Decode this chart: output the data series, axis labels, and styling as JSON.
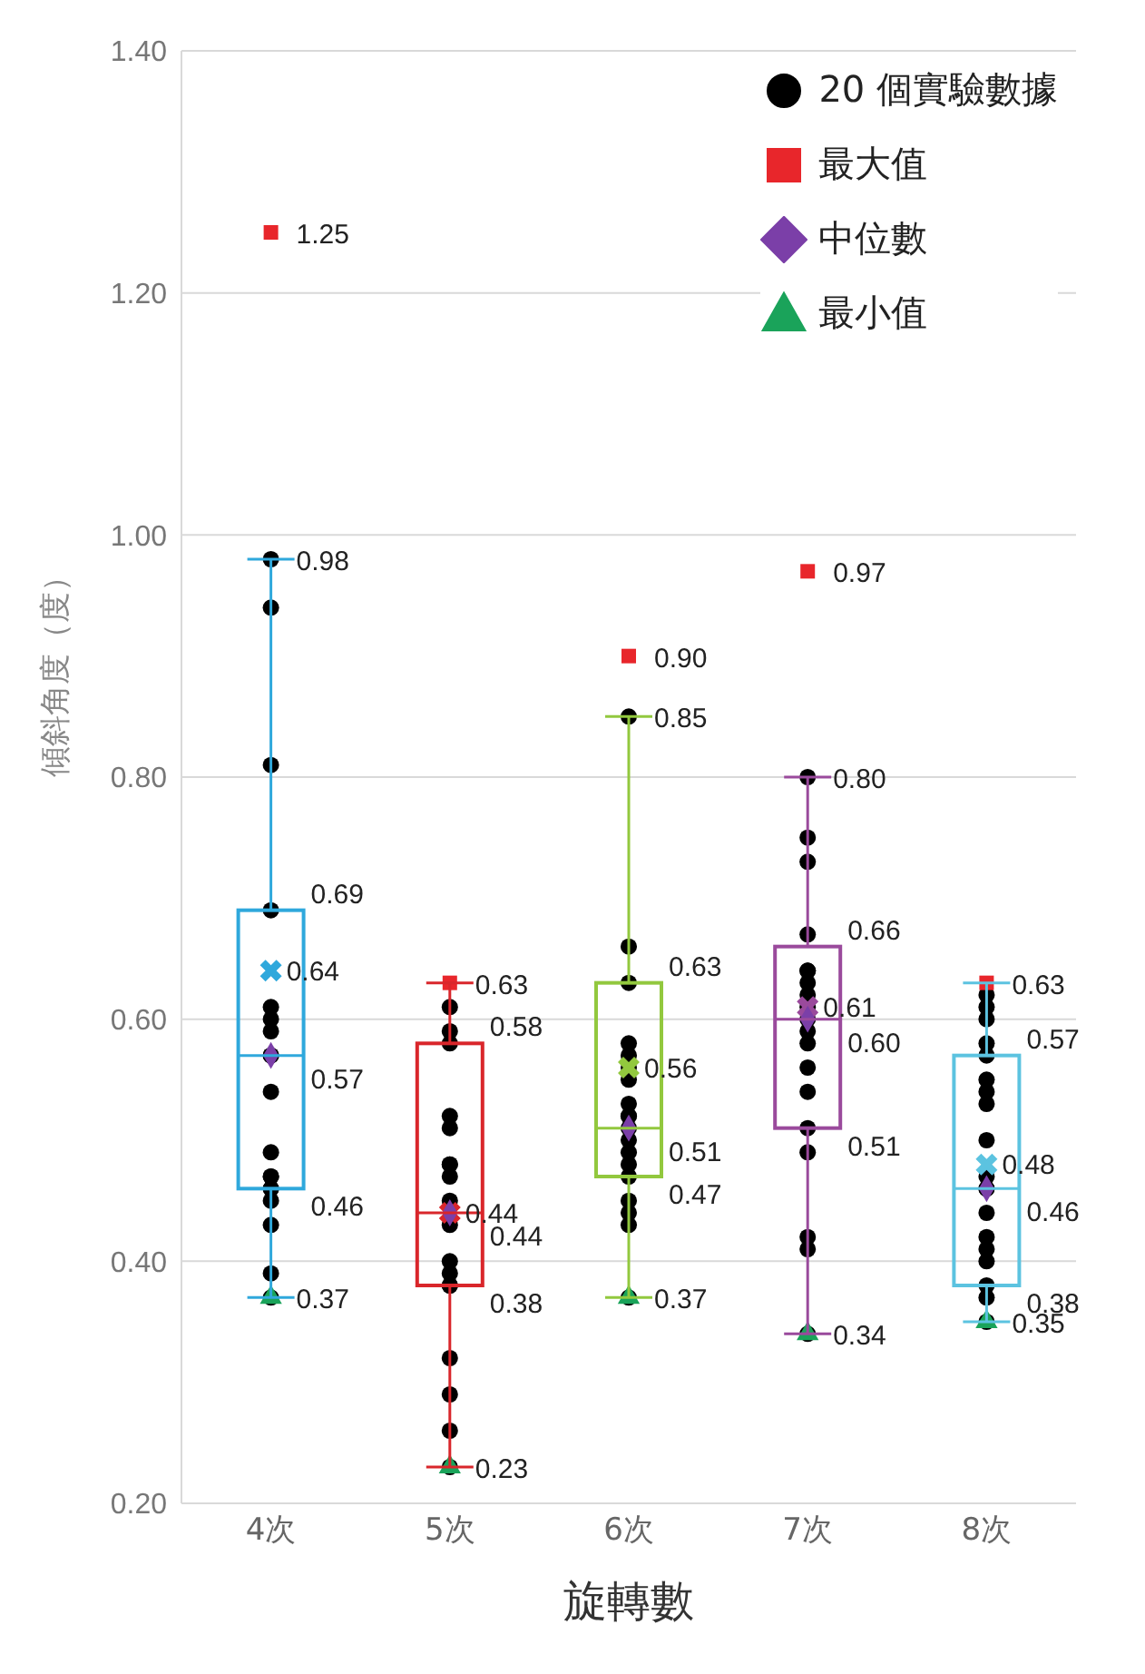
{
  "chart_data": {
    "type": "box",
    "xlabel": "旋轉數",
    "ylabel": "傾斜角度（度）",
    "categories": [
      "4次",
      "5次",
      "6次",
      "7次",
      "8次"
    ],
    "colors": [
      "#2fa8dc",
      "#d9262b",
      "#92c83e",
      "#9a4a9c",
      "#5cc3e0"
    ],
    "boxes": [
      {
        "low": 0.37,
        "q1": 0.46,
        "median": 0.57,
        "q3": 0.69,
        "high": 0.98
      },
      {
        "low": 0.23,
        "q1": 0.38,
        "median": 0.44,
        "q3": 0.58,
        "high": 0.63
      },
      {
        "low": 0.37,
        "q1": 0.47,
        "median": 0.51,
        "q3": 0.63,
        "high": 0.85
      },
      {
        "low": 0.34,
        "q1": 0.51,
        "median": 0.6,
        "q3": 0.66,
        "high": 0.8
      },
      {
        "low": 0.35,
        "q1": 0.38,
        "median": 0.46,
        "q3": 0.57,
        "high": 0.63
      }
    ],
    "series": [
      {
        "type": "scatter",
        "name": "20 個實驗數據",
        "color": "#000000",
        "marker": "circle",
        "x": [
          "4次",
          "4次",
          "4次",
          "4次",
          "4次",
          "4次",
          "4次",
          "4次",
          "4次",
          "4次",
          "4次",
          "4次",
          "4次",
          "4次",
          "4次",
          "4次",
          "4次",
          "4次",
          "4次",
          "4次",
          "5次",
          "5次",
          "5次",
          "5次",
          "5次",
          "5次",
          "5次",
          "5次",
          "5次",
          "5次",
          "5次",
          "5次",
          "5次",
          "5次",
          "5次",
          "5次",
          "5次",
          "5次",
          "5次",
          "5次",
          "6次",
          "6次",
          "6次",
          "6次",
          "6次",
          "6次",
          "6次",
          "6次",
          "6次",
          "6次",
          "6次",
          "6次",
          "6次",
          "6次",
          "6次",
          "6次",
          "6次",
          "6次",
          "6次",
          "6次",
          "7次",
          "7次",
          "7次",
          "7次",
          "7次",
          "7次",
          "7次",
          "7次",
          "7次",
          "7次",
          "7次",
          "7次",
          "7次",
          "7次",
          "7次",
          "7次",
          "7次",
          "7次",
          "7次",
          "7次",
          "8次",
          "8次",
          "8次",
          "8次",
          "8次",
          "8次",
          "8次",
          "8次",
          "8次",
          "8次",
          "8次",
          "8次",
          "8次",
          "8次",
          "8次",
          "8次",
          "8次",
          "8次",
          "8次",
          "8次"
        ],
        "values": [
          null,
          0.98,
          0.94,
          0.81,
          0.69,
          0.61,
          0.6,
          0.59,
          0.57,
          0.57,
          0.54,
          0.49,
          0.47,
          0.47,
          0.46,
          0.46,
          0.45,
          0.43,
          0.39,
          0.37,
          null,
          0.61,
          0.59,
          0.58,
          0.52,
          0.51,
          0.48,
          0.48,
          0.47,
          0.45,
          null,
          0.43,
          0.4,
          0.39,
          0.38,
          0.38,
          0.32,
          0.29,
          0.26,
          0.23,
          null,
          0.85,
          0.66,
          0.63,
          0.58,
          0.57,
          0.56,
          0.55,
          0.53,
          0.52,
          0.52,
          0.51,
          0.5,
          0.49,
          0.48,
          0.47,
          0.45,
          0.44,
          0.43,
          0.37,
          null,
          0.8,
          0.75,
          0.73,
          0.67,
          0.64,
          0.64,
          0.63,
          0.62,
          0.61,
          0.6,
          0.59,
          0.58,
          0.56,
          0.54,
          0.51,
          0.49,
          0.42,
          0.41,
          0.34,
          null,
          0.62,
          0.61,
          0.6,
          0.58,
          0.57,
          0.55,
          0.54,
          0.53,
          0.5,
          0.47,
          0.46,
          0.46,
          0.44,
          0.42,
          0.41,
          0.4,
          0.38,
          0.37,
          0.35
        ]
      },
      {
        "type": "scatter",
        "colors": [
          "#2fa8dc",
          "#d9262b",
          "#92c83e",
          "#9a4a9c",
          "#5cc3e0"
        ],
        "marker": "cross",
        "x": [
          "4次",
          "5次",
          "6次",
          "7次",
          "8次"
        ],
        "values": [
          0.64,
          0.44,
          0.56,
          0.61,
          0.48
        ],
        "value_labels": [
          "0.64",
          "0.44",
          "0.56",
          "0.61",
          "0.48"
        ]
      },
      {
        "type": "scatter",
        "name": "最大值",
        "color": "#e8262b",
        "marker": "square",
        "x": [
          "4次",
          "5次",
          "6次",
          "7次",
          "8次"
        ],
        "values": [
          1.25,
          0.63,
          0.9,
          0.97,
          0.63
        ]
      },
      {
        "type": "scatter",
        "name": "中位數",
        "color": "#7b3fa8",
        "marker": "diamond",
        "x": [
          "4次",
          "5次",
          "6次",
          "7次",
          "8次"
        ],
        "values": [
          0.57,
          0.44,
          0.51,
          0.6,
          0.46
        ]
      },
      {
        "type": "scatter",
        "name": "最小值",
        "color": "#1aa35a",
        "marker": "triangle",
        "x": [
          "4次",
          "5次",
          "6次",
          "7次",
          "8次"
        ],
        "values": [
          0.37,
          0.23,
          0.37,
          0.34,
          0.35
        ]
      }
    ],
    "annotations": [
      {
        "text": "1.25",
        "x": "4次",
        "y": 1.25
      },
      {
        "text": "0.98",
        "x": "4次",
        "y": 0.98
      },
      {
        "text": "0.69",
        "x": "4次",
        "y": 0.69
      },
      {
        "text": "0.57",
        "x": "4次",
        "y": 0.57
      },
      {
        "text": "0.46",
        "x": "4次",
        "y": 0.46
      },
      {
        "text": "0.37",
        "x": "4次",
        "y": 0.37
      },
      {
        "text": "0.63",
        "x": "5次",
        "y": 0.63
      },
      {
        "text": "0.58",
        "x": "5次",
        "y": 0.58
      },
      {
        "text": "0.44",
        "x": "5次",
        "y": 0.44
      },
      {
        "text": "0.38",
        "x": "5次",
        "y": 0.38
      },
      {
        "text": "0.23",
        "x": "5次",
        "y": 0.23
      },
      {
        "text": "0.90",
        "x": "6次",
        "y": 0.9
      },
      {
        "text": "0.85",
        "x": "6次",
        "y": 0.85
      },
      {
        "text": "0.63",
        "x": "6次",
        "y": 0.63
      },
      {
        "text": "0.51",
        "x": "6次",
        "y": 0.51
      },
      {
        "text": "0.47",
        "x": "6次",
        "y": 0.47
      },
      {
        "text": "0.37",
        "x": "6次",
        "y": 0.37
      },
      {
        "text": "0.97",
        "x": "7次",
        "y": 0.97
      },
      {
        "text": "0.80",
        "x": "7次",
        "y": 0.8
      },
      {
        "text": "0.66",
        "x": "7次",
        "y": 0.66
      },
      {
        "text": "0.60",
        "x": "7次",
        "y": 0.6
      },
      {
        "text": "0.51",
        "x": "7次",
        "y": 0.51
      },
      {
        "text": "0.34",
        "x": "7次",
        "y": 0.34
      },
      {
        "text": "0.63",
        "x": "8次",
        "y": 0.63
      },
      {
        "text": "0.57",
        "x": "8次",
        "y": 0.57
      },
      {
        "text": "0.46",
        "x": "8次",
        "y": 0.46
      },
      {
        "text": "0.38",
        "x": "8次",
        "y": 0.38
      },
      {
        "text": "0.35",
        "x": "8次",
        "y": 0.35
      }
    ],
    "ylim": [
      0.2,
      1.4
    ],
    "yticks": [
      {
        "value": 0.2,
        "label": "0.20"
      },
      {
        "value": 0.4,
        "label": "0.40"
      },
      {
        "value": 0.6,
        "label": "0.60"
      },
      {
        "value": 0.8,
        "label": "0.80"
      },
      {
        "value": 1.0,
        "label": "1.00"
      },
      {
        "value": 1.2,
        "label": "1.20"
      },
      {
        "value": 1.4,
        "label": "1.40"
      }
    ],
    "grid": "y",
    "legend": "top right"
  }
}
